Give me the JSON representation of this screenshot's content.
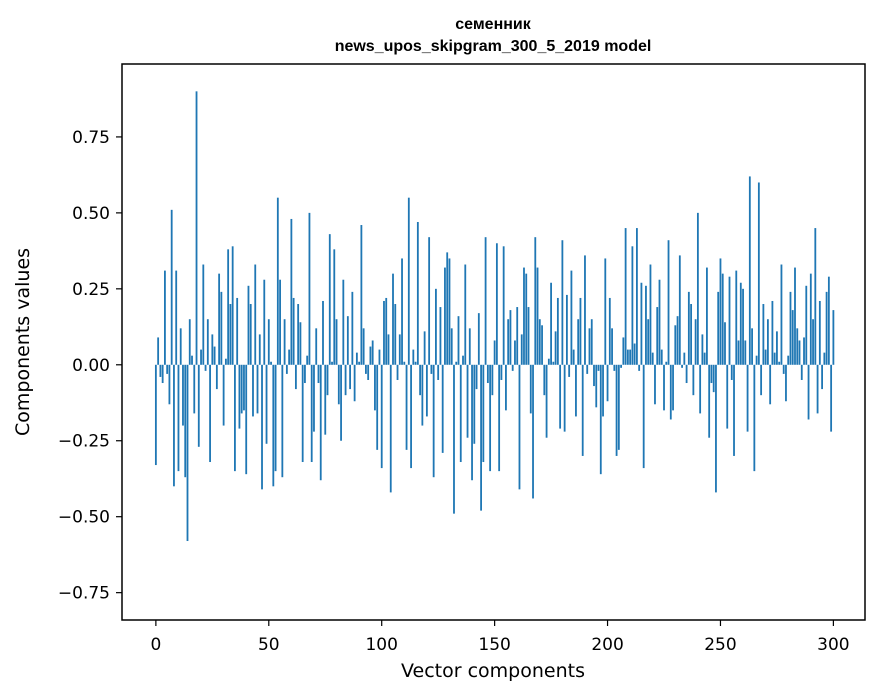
{
  "chart_data": {
    "type": "bar",
    "title": "семенник",
    "subtitle": "news_upos_skipgram_300_5_2019 model",
    "xlabel": "Vector components",
    "ylabel": "Components values",
    "xlim": [
      -15,
      314
    ],
    "ylim": [
      -0.84,
      0.99
    ],
    "xticks": [
      0,
      50,
      100,
      150,
      200,
      250,
      300
    ],
    "yticks": [
      -0.75,
      -0.5,
      -0.25,
      0.0,
      0.25,
      0.5,
      0.75
    ],
    "ytick_labels": [
      "−0.75",
      "−0.50",
      "−0.25",
      "0.00",
      "0.25",
      "0.50",
      "0.75"
    ],
    "xtick_labels": [
      "0",
      "50",
      "100",
      "150",
      "200",
      "250",
      "300"
    ],
    "bar_color": "#1f77b4",
    "values": [
      -0.33,
      0.09,
      -0.04,
      -0.06,
      0.31,
      -0.03,
      -0.13,
      0.51,
      -0.4,
      0.31,
      -0.35,
      0.12,
      -0.2,
      -0.37,
      -0.58,
      0.15,
      0.03,
      -0.16,
      0.9,
      -0.27,
      0.05,
      0.33,
      -0.02,
      0.15,
      -0.32,
      0.1,
      0.06,
      -0.08,
      0.3,
      0.24,
      -0.2,
      0.02,
      0.38,
      0.2,
      0.39,
      -0.35,
      0.22,
      -0.21,
      -0.16,
      -0.15,
      -0.36,
      0.26,
      0.2,
      -0.17,
      0.33,
      -0.16,
      0.1,
      -0.41,
      0.28,
      -0.26,
      0.15,
      0.01,
      -0.4,
      -0.35,
      0.55,
      0.28,
      -0.37,
      0.15,
      -0.03,
      0.05,
      0.48,
      0.22,
      -0.08,
      0.2,
      0.14,
      -0.32,
      -0.06,
      0.03,
      0.5,
      -0.32,
      -0.22,
      0.12,
      -0.06,
      -0.38,
      0.21,
      -0.23,
      -0.1,
      0.43,
      0.01,
      0.38,
      0.15,
      -0.13,
      -0.25,
      0.28,
      -0.1,
      0.16,
      -0.08,
      0.24,
      -0.12,
      0.04,
      0.01,
      0.46,
      0.12,
      -0.03,
      -0.05,
      0.06,
      0.08,
      -0.15,
      -0.28,
      0.05,
      -0.34,
      0.21,
      0.22,
      0.1,
      -0.42,
      0.3,
      0.2,
      -0.05,
      0.1,
      0.35,
      0.01,
      -0.28,
      0.55,
      -0.34,
      0.05,
      0.01,
      0.47,
      -0.1,
      -0.2,
      0.11,
      -0.17,
      0.42,
      -0.03,
      -0.37,
      0.25,
      -0.05,
      0.19,
      -0.29,
      0.32,
      0.37,
      0.35,
      0.12,
      -0.49,
      0.01,
      0.16,
      -0.32,
      0.03,
      0.33,
      -0.24,
      0.12,
      -0.38,
      -0.26,
      -0.08,
      0.17,
      -0.48,
      -0.32,
      0.42,
      -0.06,
      -0.35,
      -0.1,
      0.08,
      0.4,
      -0.35,
      -0.05,
      0.39,
      -0.15,
      0.15,
      0.18,
      -0.02,
      0.08,
      0.19,
      -0.41,
      0.1,
      0.32,
      0.3,
      0.19,
      -0.16,
      -0.44,
      0.42,
      0.32,
      0.15,
      0.13,
      -0.1,
      -0.24,
      0.02,
      0.27,
      0.01,
      0.11,
      0.22,
      -0.21,
      0.41,
      -0.22,
      0.23,
      -0.04,
      0.31,
      0.05,
      -0.17,
      0.15,
      0.22,
      -0.3,
      0.36,
      -0.03,
      0.12,
      0.15,
      -0.07,
      -0.14,
      -0.02,
      -0.36,
      -0.17,
      0.35,
      -0.12,
      0.22,
      0.12,
      -0.02,
      -0.3,
      -0.28,
      -0.01,
      0.09,
      0.45,
      0.05,
      0.05,
      0.39,
      0.07,
      0.45,
      -0.02,
      0.27,
      -0.34,
      0.26,
      0.15,
      0.33,
      0.04,
      -0.13,
      0.19,
      0.28,
      0.05,
      -0.15,
      0.01,
      0.41,
      -0.18,
      -0.15,
      0.13,
      0.16,
      0.36,
      -0.01,
      0.04,
      -0.06,
      0.24,
      0.2,
      -0.1,
      0.15,
      0.5,
      -0.16,
      0.1,
      0.04,
      0.32,
      -0.24,
      -0.06,
      -0.09,
      -0.42,
      0.24,
      0.35,
      0.3,
      0.14,
      -0.21,
      0.29,
      -0.05,
      -0.3,
      0.31,
      0.08,
      0.27,
      0.25,
      0.08,
      -0.22,
      0.62,
      0.12,
      -0.35,
      0.03,
      0.6,
      -0.1,
      0.2,
      0.05,
      0.15,
      -0.13,
      0.21,
      0.04,
      0.11,
      0.01,
      0.33,
      -0.03,
      -0.12,
      0.03,
      0.24,
      0.18,
      0.32,
      0.12,
      0.08,
      -0.05,
      0.09,
      0.26,
      -0.18,
      0.3,
      0.15,
      0.45,
      -0.16,
      0.21,
      -0.08,
      0.04,
      0.24,
      0.29,
      -0.22,
      0.18
    ]
  }
}
